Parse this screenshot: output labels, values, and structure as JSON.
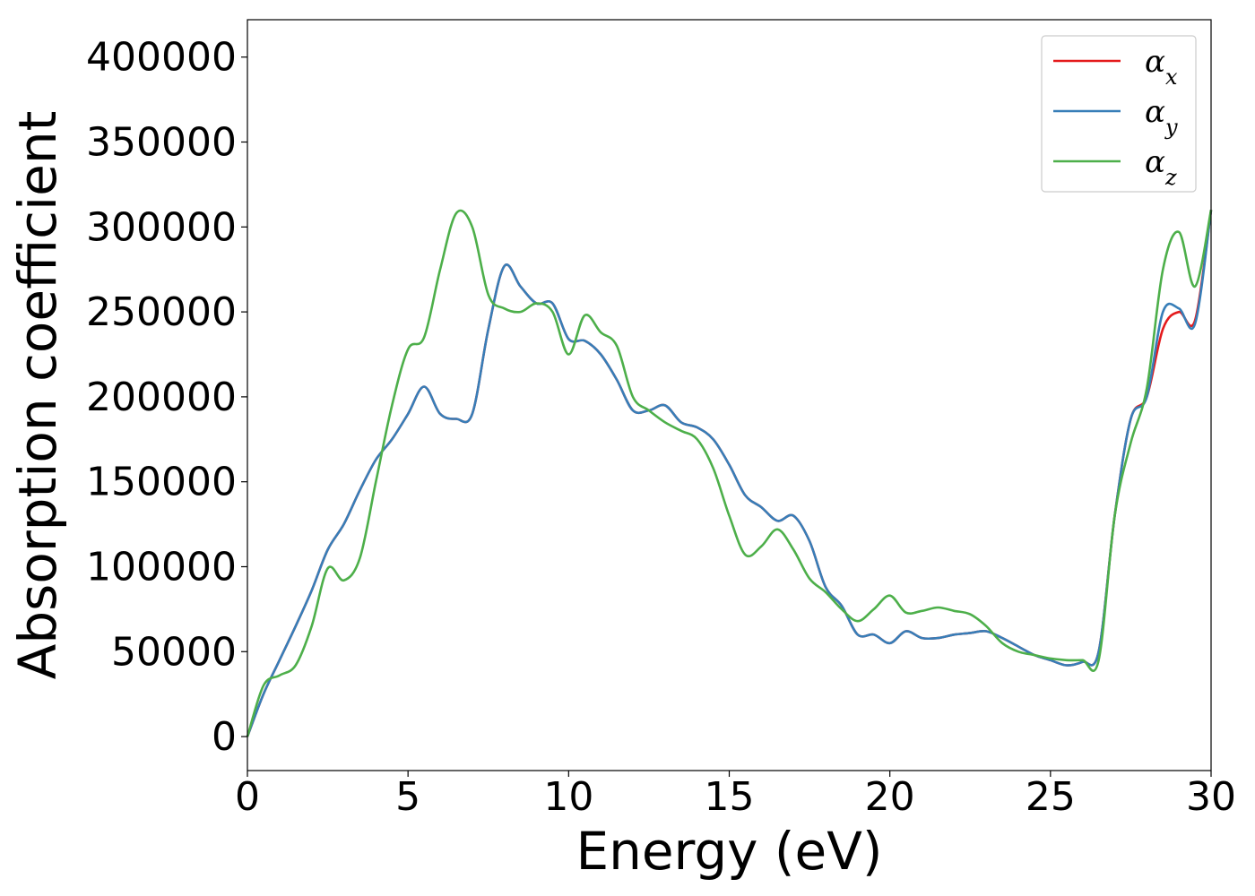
{
  "chart_data": {
    "type": "line",
    "title": "",
    "xlabel": "Energy (eV)",
    "ylabel": "Absorption coefficient",
    "xlim": [
      0,
      30
    ],
    "ylim": [
      -20000,
      422000
    ],
    "xticks": [
      0,
      5,
      10,
      15,
      20,
      25,
      30
    ],
    "yticks": [
      0,
      50000,
      100000,
      150000,
      200000,
      250000,
      300000,
      350000,
      400000
    ],
    "grid": false,
    "legend_position": "top-right",
    "x": [
      0,
      0.5,
      1,
      1.5,
      2,
      2.5,
      3,
      3.5,
      4,
      4.5,
      5,
      5.5,
      6,
      6.5,
      7,
      7.5,
      8,
      8.5,
      9,
      9.5,
      10,
      10.5,
      11,
      11.5,
      12,
      12.5,
      13,
      13.5,
      14,
      14.5,
      15,
      15.5,
      16,
      16.5,
      17,
      17.5,
      18,
      18.5,
      19,
      19.5,
      20,
      20.5,
      21,
      21.5,
      22,
      22.5,
      23,
      23.5,
      24,
      24.5,
      25,
      25.5,
      26,
      26.5,
      27,
      27.5,
      28,
      28.5,
      29,
      29.5,
      30
    ],
    "series": [
      {
        "name": "α",
        "subscript": "x",
        "color": "#e41a1c",
        "values": [
          0,
          25000,
          45000,
          65000,
          86000,
          110000,
          125000,
          145000,
          163000,
          175000,
          190000,
          206000,
          190000,
          187000,
          190000,
          240000,
          277000,
          265000,
          255000,
          255000,
          234000,
          233000,
          225000,
          210000,
          192000,
          192000,
          195000,
          185000,
          182000,
          175000,
          160000,
          142000,
          135000,
          127000,
          130000,
          115000,
          88000,
          77000,
          60000,
          60000,
          55000,
          62000,
          58000,
          58000,
          60000,
          61000,
          62000,
          58000,
          53000,
          48000,
          45000,
          42000,
          44000,
          50000,
          130000,
          187000,
          200000,
          240000,
          250000,
          245000,
          310000
        ]
      },
      {
        "name": "α",
        "subscript": "y",
        "color": "#377eb8",
        "values": [
          0,
          25000,
          45000,
          65000,
          86000,
          110000,
          125000,
          145000,
          163000,
          175000,
          190000,
          206000,
          190000,
          187000,
          190000,
          240000,
          277000,
          265000,
          255000,
          255000,
          234000,
          233000,
          225000,
          210000,
          192000,
          192000,
          195000,
          185000,
          182000,
          175000,
          160000,
          142000,
          135000,
          127000,
          130000,
          115000,
          88000,
          77000,
          60000,
          60000,
          55000,
          62000,
          58000,
          58000,
          60000,
          61000,
          62000,
          58000,
          53000,
          48000,
          45000,
          42000,
          44000,
          50000,
          130000,
          187000,
          200000,
          250000,
          252000,
          243000,
          310000
        ]
      },
      {
        "name": "α",
        "subscript": "z",
        "color": "#4daf4a",
        "values": [
          0,
          30000,
          36000,
          42000,
          65000,
          99000,
          92000,
          105000,
          150000,
          195000,
          228000,
          235000,
          275000,
          308000,
          300000,
          260000,
          252000,
          250000,
          255000,
          250000,
          225000,
          248000,
          238000,
          230000,
          200000,
          192000,
          185000,
          180000,
          175000,
          158000,
          130000,
          107000,
          112000,
          122000,
          110000,
          93000,
          85000,
          75000,
          68000,
          75000,
          83000,
          73000,
          74000,
          76000,
          74000,
          72000,
          65000,
          55000,
          50000,
          48000,
          46000,
          45000,
          45000,
          45000,
          130000,
          173000,
          205000,
          275000,
          297000,
          265000,
          310000
        ]
      }
    ]
  }
}
